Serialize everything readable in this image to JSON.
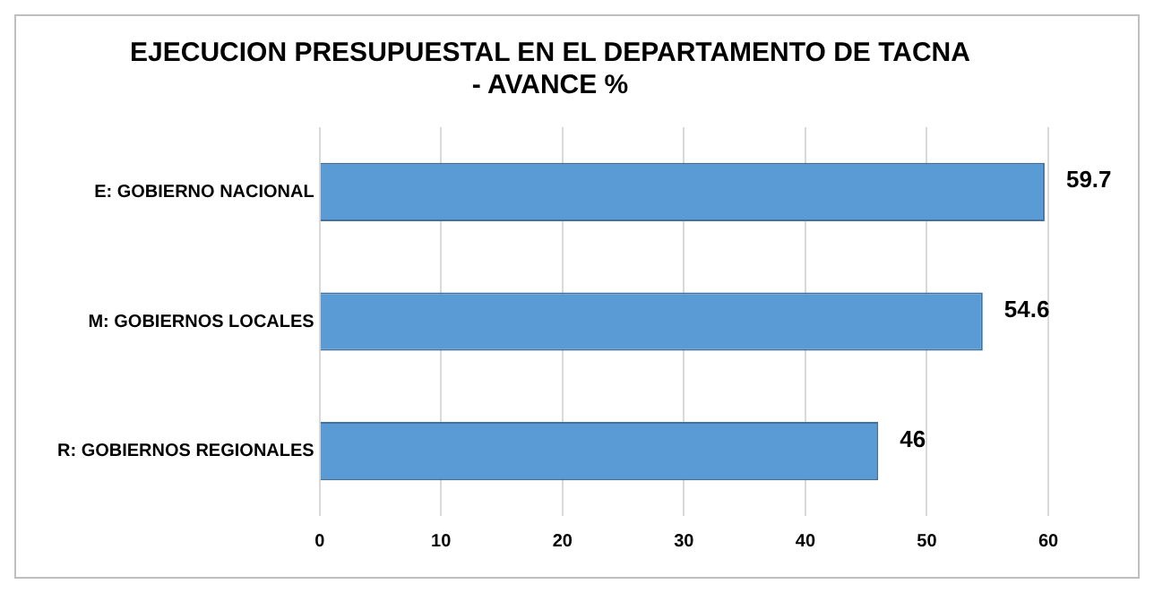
{
  "chart_data": {
    "type": "bar",
    "orientation": "horizontal",
    "title": "EJECUCION PRESUPUESTAL EN EL DEPARTAMENTO DE TACNA - AVANCE %",
    "categories": [
      "E: GOBIERNO NACIONAL",
      "M: GOBIERNOS LOCALES",
      "R: GOBIERNOS REGIONALES"
    ],
    "values": [
      59.7,
      54.6,
      46
    ],
    "color": "#5b9bd5",
    "xlim": [
      0,
      60
    ],
    "xticks": [
      0,
      10,
      20,
      30,
      40,
      50,
      60
    ],
    "grid": "x",
    "data_labels": true,
    "legend": false
  }
}
